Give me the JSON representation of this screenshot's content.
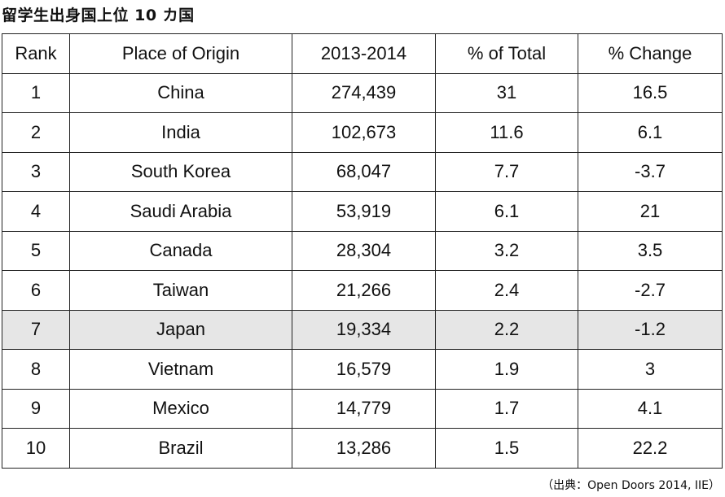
{
  "title": "留学生出身国上位 10 カ国",
  "table": {
    "headers": [
      "Rank",
      "Place of Origin",
      "2013-2014",
      "% of Total",
      "% Change"
    ],
    "rows": [
      [
        "1",
        "China",
        "274,439",
        "31",
        "16.5"
      ],
      [
        "2",
        "India",
        "102,673",
        "11.6",
        "6.1"
      ],
      [
        "3",
        "South Korea",
        "68,047",
        "7.7",
        "-3.7"
      ],
      [
        "4",
        "Saudi Arabia",
        "53,919",
        "6.1",
        "21"
      ],
      [
        "5",
        "Canada",
        "28,304",
        "3.2",
        "3.5"
      ],
      [
        "6",
        "Taiwan",
        "21,266",
        "2.4",
        "-2.7"
      ],
      [
        "7",
        "Japan",
        "19,334",
        "2.2",
        "-1.2"
      ],
      [
        "8",
        "Vietnam",
        "16,579",
        "1.9",
        "3"
      ],
      [
        "9",
        "Mexico",
        "14,779",
        "1.7",
        "4.1"
      ],
      [
        "10",
        "Brazil",
        "13,286",
        "1.5",
        "22.2"
      ]
    ],
    "highlight_row_rank": "7",
    "highlight_color": "#e6e6e6"
  },
  "source": "（出典：Open Doors 2014, IIE）"
}
